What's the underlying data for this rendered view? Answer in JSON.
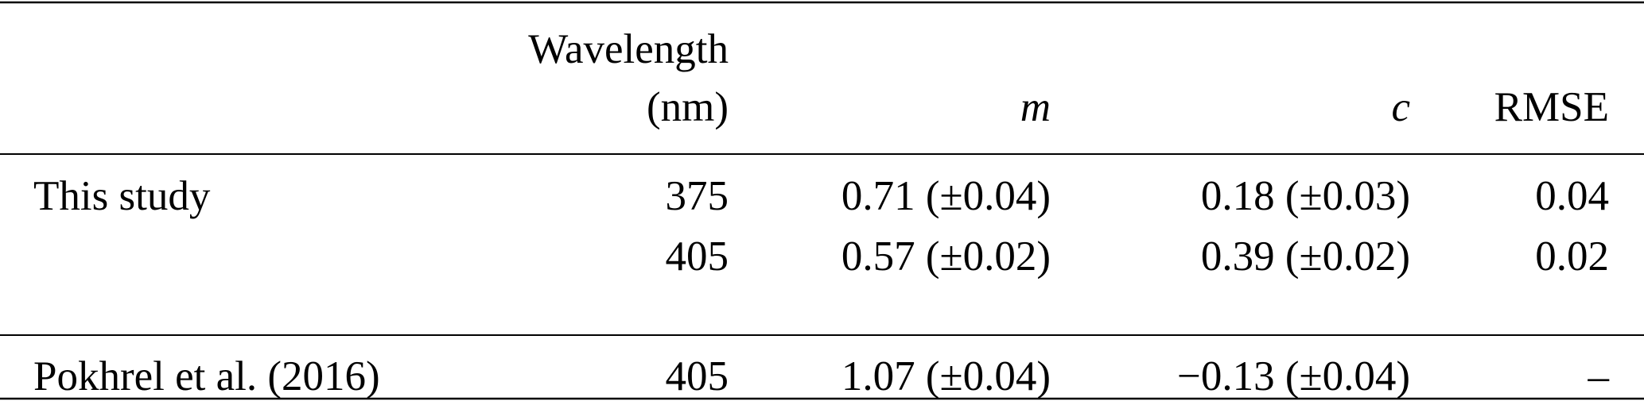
{
  "table": {
    "header": {
      "wavelength": [
        "Wavelength",
        "(nm)"
      ],
      "m": "m",
      "c": "c",
      "rmse": "RMSE"
    },
    "groups": [
      {
        "name": "This study",
        "rows": [
          [
            "375",
            "0.71 (±0.04)",
            "0.18 (±0.03)",
            "0.04"
          ],
          [
            "405",
            "0.57 (±0.02)",
            "0.39 (±0.02)",
            "0.02"
          ]
        ]
      },
      {
        "name": "Pokhrel et al. (2016)",
        "rows": [
          [
            "405",
            "1.07 (±0.04)",
            "−0.13 (±0.04)",
            "–"
          ]
        ]
      }
    ]
  }
}
